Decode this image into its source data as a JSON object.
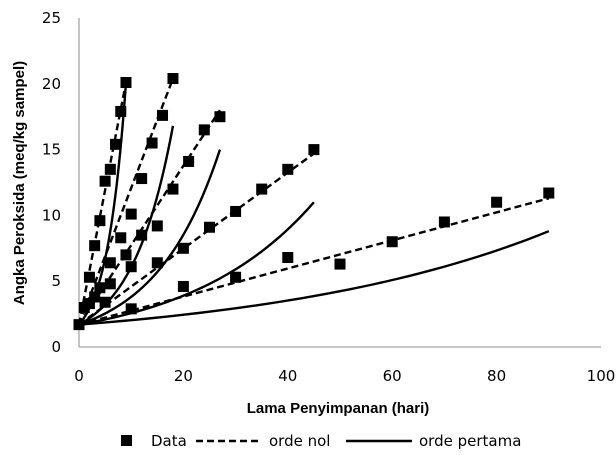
{
  "chart_data": {
    "type": "scatter",
    "title": "",
    "xlabel": "Lama Penyimpanan (hari)",
    "ylabel": "Angka Peroksida (meq/kg sampel)",
    "xlim": [
      0,
      100
    ],
    "ylim": [
      0,
      25
    ],
    "xticks": [
      "0",
      "20",
      "40",
      "60",
      "80",
      "100"
    ],
    "yticks": [
      "0",
      "5",
      "10",
      "15",
      "20",
      "25"
    ],
    "grid": false,
    "legend_position": "bottom",
    "legend": [
      "Data",
      "orde nol",
      "orde pertama"
    ],
    "series": [
      {
        "name": "Data",
        "kind": "markers",
        "points": [
          [
            0,
            1.7
          ],
          [
            1,
            3.0
          ],
          [
            2,
            5.3
          ],
          [
            3,
            7.7
          ],
          [
            4,
            9.6
          ],
          [
            5,
            12.6
          ],
          [
            6,
            13.5
          ],
          [
            7,
            15.4
          ],
          [
            8,
            17.9
          ],
          [
            9,
            20.1
          ],
          [
            2,
            3.3
          ],
          [
            4,
            4.5
          ],
          [
            6,
            6.4
          ],
          [
            8,
            8.3
          ],
          [
            10,
            10.1
          ],
          [
            12,
            12.8
          ],
          [
            14,
            15.5
          ],
          [
            16,
            17.6
          ],
          [
            18,
            20.4
          ],
          [
            3,
            3.8
          ],
          [
            6,
            4.8
          ],
          [
            9,
            7.0
          ],
          [
            12,
            8.5
          ],
          [
            15,
            9.2
          ],
          [
            18,
            12.0
          ],
          [
            21,
            14.1
          ],
          [
            24,
            16.5
          ],
          [
            27,
            17.5
          ],
          [
            5,
            3.4
          ],
          [
            10,
            6.1
          ],
          [
            15,
            6.4
          ],
          [
            20,
            7.5
          ],
          [
            25,
            9.1
          ],
          [
            30,
            10.3
          ],
          [
            35,
            12.0
          ],
          [
            40,
            13.5
          ],
          [
            45,
            15.0
          ],
          [
            10,
            2.9
          ],
          [
            20,
            4.6
          ],
          [
            30,
            5.3
          ],
          [
            40,
            6.8
          ],
          [
            50,
            6.3
          ],
          [
            60,
            8.0
          ],
          [
            70,
            9.5
          ],
          [
            80,
            11.0
          ],
          [
            90,
            11.7
          ]
        ]
      },
      {
        "name": "orde nol",
        "kind": "dashed",
        "segments": [
          [
            [
              0,
              1.7
            ],
            [
              9,
              20.1
            ]
          ],
          [
            [
              0,
              1.7
            ],
            [
              18,
              20.4
            ]
          ],
          [
            [
              0,
              1.7
            ],
            [
              27,
              18.0
            ]
          ],
          [
            [
              0,
              1.7
            ],
            [
              45,
              14.7
            ]
          ],
          [
            [
              0,
              1.7
            ],
            [
              90,
              11.3
            ]
          ]
        ]
      },
      {
        "name": "orde pertama",
        "kind": "solid",
        "curves": [
          {
            "y0": 1.7,
            "x_end": 9,
            "y_end": 20.1
          },
          {
            "y0": 1.7,
            "x_end": 18,
            "y_end": 16.8
          },
          {
            "y0": 1.7,
            "x_end": 27,
            "y_end": 15.0
          },
          {
            "y0": 1.7,
            "x_end": 45,
            "y_end": 11.0
          },
          {
            "y0": 1.7,
            "x_end": 90,
            "y_end": 8.8
          }
        ]
      }
    ]
  }
}
